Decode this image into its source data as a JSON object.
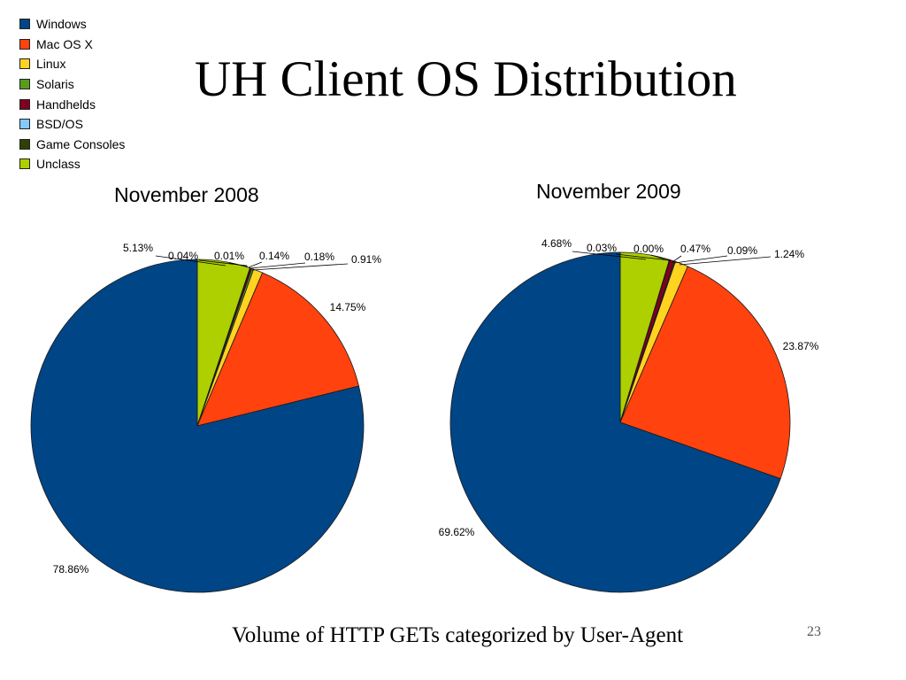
{
  "title": "UH Client OS Distribution",
  "caption": "Volume of HTTP GETs categorized by User-Agent",
  "page_number": "23",
  "legend": [
    {
      "label": "Windows",
      "color": "#004586"
    },
    {
      "label": "Mac OS X",
      "color": "#ff420e"
    },
    {
      "label": "Linux",
      "color": "#ffd320"
    },
    {
      "label": "Solaris",
      "color": "#579d1c"
    },
    {
      "label": "Handhelds",
      "color": "#7e0021"
    },
    {
      "label": "BSD/OS",
      "color": "#83caff"
    },
    {
      "label": "Game Consoles",
      "color": "#314004"
    },
    {
      "label": "Unclass",
      "color": "#aecf00"
    }
  ],
  "chart_data": [
    {
      "type": "pie",
      "title": "November 2008",
      "categories": [
        "Windows",
        "Mac OS X",
        "Linux",
        "Solaris",
        "Handhelds",
        "BSD/OS",
        "Game Consoles",
        "Unclass"
      ],
      "values": [
        78.86,
        14.75,
        0.91,
        0.18,
        0.14,
        0.01,
        0.04,
        5.13
      ],
      "labels": [
        "78.86%",
        "14.75%",
        "0.91%",
        "0.18%",
        "0.14%",
        "0.01%",
        "0.04%",
        "5.13%"
      ]
    },
    {
      "type": "pie",
      "title": "November 2009",
      "categories": [
        "Windows",
        "Mac OS X",
        "Linux",
        "Solaris",
        "Handhelds",
        "BSD/OS",
        "Game Consoles",
        "Unclass"
      ],
      "values": [
        69.62,
        23.87,
        1.24,
        0.09,
        0.47,
        0.0,
        0.03,
        4.68
      ],
      "labels": [
        "69.62%",
        "23.87%",
        "1.24%",
        "0.09%",
        "0.47%",
        "0.00%",
        "0.03%",
        "4.68%"
      ]
    }
  ]
}
